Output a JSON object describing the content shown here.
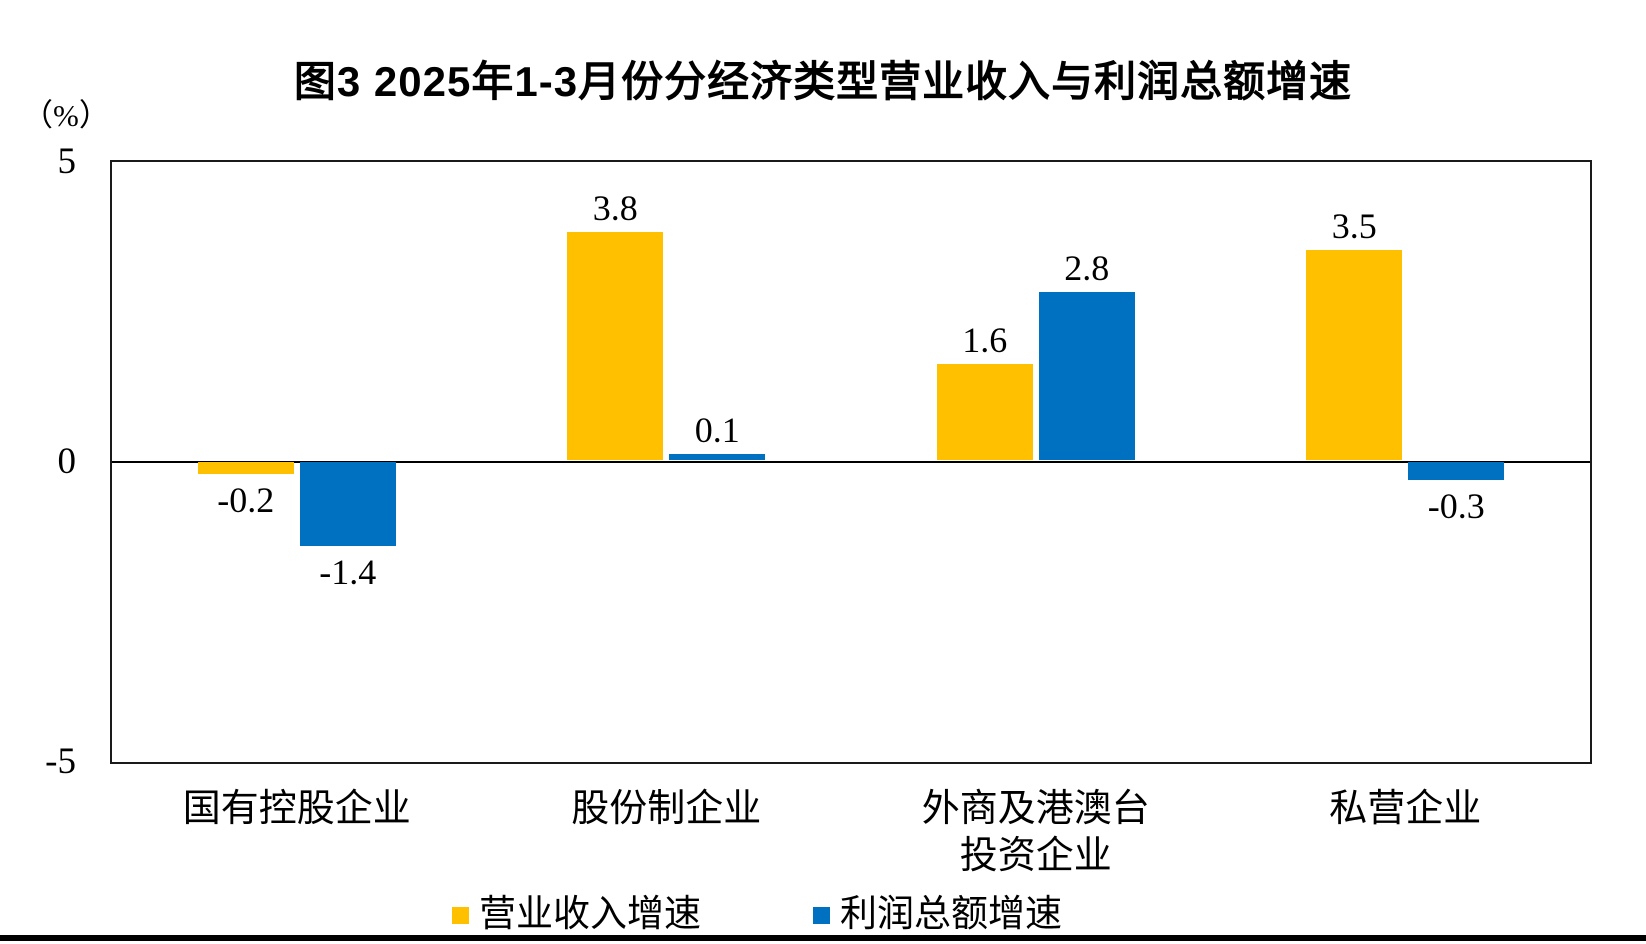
{
  "chart_data": {
    "type": "bar",
    "title": "图3 2025年1-3月份分经济类型营业收入与利润总额增速",
    "unit_label": "（%）",
    "categories": [
      "国有控股企业",
      "股份制企业",
      "外商及港澳台\n投资企业",
      "私营企业"
    ],
    "series": [
      {
        "name": "营业收入增速",
        "color": "#FFC000",
        "values": [
          -0.2,
          3.8,
          1.6,
          3.5
        ],
        "value_labels": [
          "-0.2",
          "3.8",
          "1.6",
          "3.5"
        ]
      },
      {
        "name": "利润总额增速",
        "color": "#0070C0",
        "values": [
          -1.4,
          0.1,
          2.8,
          -0.3
        ],
        "value_labels": [
          "-1.4",
          "0.1",
          "2.8",
          "-0.3"
        ]
      }
    ],
    "y_axis": {
      "min": -5,
      "max": 5,
      "ticks": [
        {
          "label": "5",
          "value": 5
        },
        {
          "label": "0",
          "value": 0
        },
        {
          "label": "-5",
          "value": -5
        }
      ]
    },
    "grid": false,
    "legend_position": "bottom"
  }
}
